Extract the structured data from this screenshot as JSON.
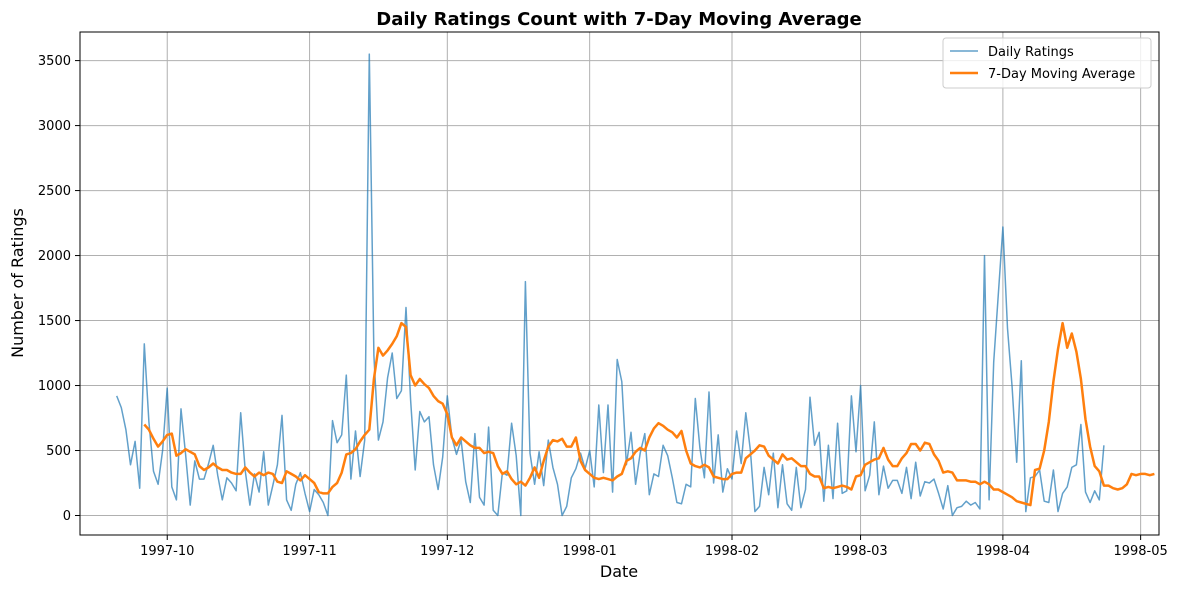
{
  "chart_data": {
    "type": "line",
    "title": "Daily Ratings Count with 7-Day Moving Average",
    "xlabel": "Date",
    "ylabel": "Number of Ratings",
    "xlim": [
      "1997-09-12",
      "1998-05-05"
    ],
    "ylim": [
      -150,
      3720
    ],
    "grid": true,
    "legend_position": "top-right",
    "x_ticks": [
      "1997-10-01",
      "1997-11-01",
      "1997-12-01",
      "1998-01-01",
      "1998-02-01",
      "1998-03-01",
      "1998-04-01",
      "1998-05-01"
    ],
    "x_tick_labels": [
      "1997-10",
      "1997-11",
      "1997-12",
      "1998-01",
      "1998-02",
      "1998-03",
      "1998-04",
      "1998-05"
    ],
    "y_ticks": [
      0,
      500,
      1000,
      1500,
      2000,
      2500,
      3000,
      3500
    ],
    "y_tick_labels": [
      "0",
      "500",
      "1000",
      "1500",
      "2000",
      "2500",
      "3000",
      "3500"
    ],
    "start_date": "1997-09-20",
    "series": [
      {
        "name": "Daily Ratings",
        "color": "#1f77b4",
        "opacity": 0.7,
        "line_width": 1.5,
        "values": [
          920,
          830,
          660,
          390,
          570,
          210,
          1320,
          720,
          340,
          240,
          500,
          980,
          220,
          120,
          820,
          470,
          80,
          420,
          280,
          280,
          400,
          540,
          310,
          120,
          290,
          250,
          190,
          790,
          340,
          80,
          320,
          180,
          490,
          80,
          230,
          390,
          770,
          120,
          40,
          240,
          330,
          170,
          30,
          200,
          160,
          100,
          0,
          730,
          560,
          620,
          1080,
          280,
          650,
          300,
          580,
          3550,
          1230,
          580,
          720,
          1060,
          1250,
          900,
          960,
          1600,
          890,
          350,
          800,
          720,
          760,
          390,
          200,
          450,
          920,
          600,
          470,
          580,
          260,
          100,
          630,
          140,
          80,
          680,
          40,
          0,
          330,
          310,
          710,
          460,
          0,
          1800,
          480,
          240,
          490,
          230,
          580,
          370,
          240,
          0,
          70,
          290,
          360,
          480,
          360,
          500,
          220,
          850,
          330,
          850,
          180,
          1200,
          1030,
          390,
          640,
          240,
          480,
          630,
          160,
          320,
          300,
          540,
          460,
          290,
          100,
          90,
          240,
          220,
          900,
          520,
          290,
          950,
          250,
          620,
          180,
          360,
          280,
          650,
          400,
          790,
          500,
          30,
          70,
          370,
          160,
          480,
          60,
          390,
          90,
          40,
          370,
          60,
          200,
          910,
          540,
          640,
          110,
          540,
          130,
          710,
          170,
          190,
          920,
          490,
          1000,
          190,
          310,
          720,
          160,
          380,
          210,
          270,
          270,
          170,
          370,
          130,
          410,
          150,
          260,
          250,
          280,
          170,
          50,
          230,
          0,
          60,
          70,
          110,
          80,
          100,
          50,
          2000,
          120,
          1180,
          1700,
          2220,
          1440,
          990,
          410,
          1190,
          30,
          290,
          300,
          350,
          110,
          100,
          350,
          30,
          170,
          220,
          370,
          390,
          700,
          180,
          100,
          190,
          120,
          540
        ]
      },
      {
        "name": "7-Day Moving Average",
        "color": "#ff7f0e",
        "opacity": 1,
        "line_width": 2.5,
        "start_index": 6,
        "values": [
          700,
          660,
          590,
          530,
          570,
          620,
          630,
          460,
          480,
          510,
          490,
          470,
          380,
          350,
          370,
          400,
          370,
          350,
          350,
          330,
          320,
          320,
          370,
          330,
          300,
          330,
          310,
          330,
          320,
          260,
          250,
          340,
          320,
          300,
          270,
          310,
          280,
          250,
          180,
          170,
          170,
          220,
          250,
          330,
          470,
          480,
          510,
          570,
          620,
          660,
          1050,
          1290,
          1230,
          1270,
          1320,
          1380,
          1480,
          1450,
          1080,
          1000,
          1050,
          1010,
          980,
          920,
          880,
          860,
          780,
          600,
          540,
          600,
          570,
          540,
          520,
          520,
          480,
          490,
          480,
          380,
          320,
          340,
          280,
          240,
          260,
          230,
          290,
          370,
          290,
          420,
          530,
          580,
          570,
          590,
          530,
          530,
          600,
          420,
          350,
          320,
          290,
          280,
          290,
          280,
          270,
          300,
          320,
          420,
          440,
          490,
          520,
          500,
          600,
          670,
          710,
          690,
          660,
          640,
          600,
          650,
          500,
          400,
          380,
          370,
          390,
          370,
          300,
          290,
          280,
          280,
          320,
          330,
          330,
          440,
          470,
          500,
          540,
          530,
          460,
          430,
          400,
          470,
          430,
          440,
          410,
          380,
          380,
          320,
          300,
          300,
          210,
          220,
          210,
          220,
          230,
          220,
          200,
          300,
          310,
          390,
          410,
          430,
          440,
          520,
          430,
          380,
          380,
          440,
          480,
          550,
          550,
          500,
          560,
          550,
          470,
          420,
          330,
          340,
          330,
          270,
          270,
          270,
          260,
          260,
          240,
          260,
          240,
          200,
          200,
          180,
          160,
          140,
          110,
          100,
          90,
          80,
          350,
          360,
          500,
          720,
          1030,
          1280,
          1480,
          1290,
          1400,
          1260,
          1050,
          740,
          530,
          380,
          340,
          230,
          230,
          210,
          200,
          210,
          240,
          320,
          310,
          320,
          320,
          310,
          320
        ]
      }
    ]
  }
}
